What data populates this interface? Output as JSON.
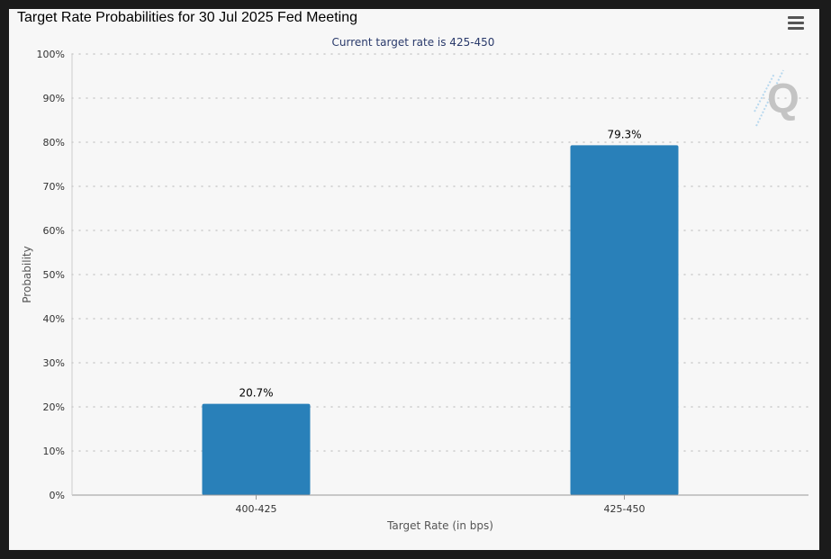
{
  "title": "Target Rate Probabilities for 30 Jul 2025 Fed Meeting",
  "menu_icon": "hamburger-menu-icon",
  "watermark_icon": "q-logo-icon",
  "colors": {
    "bar": "#2980b9",
    "grid": "#cccccc",
    "subtitle": "#2a3a6b"
  },
  "chart_data": {
    "type": "bar",
    "title": "Target Rate Probabilities for 30 Jul 2025 Fed Meeting",
    "subtitle": "Current target rate is 425-450",
    "categories": [
      "400-425",
      "425-450"
    ],
    "values": [
      20.7,
      79.3
    ],
    "data_labels": [
      "20.7%",
      "79.3%"
    ],
    "xlabel": "Target Rate (in bps)",
    "ylabel": "Probability",
    "ylim": [
      0,
      100
    ],
    "yticks": [
      0,
      10,
      20,
      30,
      40,
      50,
      60,
      70,
      80,
      90,
      100
    ],
    "ytick_labels": [
      "0%",
      "10%",
      "20%",
      "30%",
      "40%",
      "50%",
      "60%",
      "70%",
      "80%",
      "90%",
      "100%"
    ],
    "grid": true
  }
}
